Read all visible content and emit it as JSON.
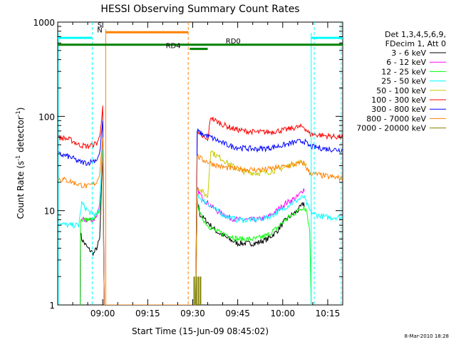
{
  "chart_data": {
    "type": "line",
    "title": "HESSI Observing Summary Count Rates",
    "xlabel": "Start Time (15-Jun-09 08:45:02)",
    "ylabel_main": "Count Rate (s",
    "ylabel_sup1": "-1",
    "ylabel_mid": " detector",
    "ylabel_sup2": "-1",
    "ylabel_end": ")",
    "y_scale": "log",
    "ylim": [
      1,
      1000
    ],
    "xlim_minutes_after_0845": [
      0,
      95
    ],
    "x_ticks": [
      {
        "m": 15,
        "label": "09:00"
      },
      {
        "m": 30,
        "label": "09:15"
      },
      {
        "m": 45,
        "label": "09:30"
      },
      {
        "m": 60,
        "label": "09:45"
      },
      {
        "m": 75,
        "label": "10:00"
      },
      {
        "m": 90,
        "label": "10:15"
      }
    ],
    "y_ticks": [
      {
        "v": 1,
        "label": "1"
      },
      {
        "v": 10,
        "label": "10"
      },
      {
        "v": 100,
        "label": "100"
      },
      {
        "v": 1000,
        "label": "1000"
      }
    ],
    "legend_placement": "top-right",
    "legend_header": [
      "Det 1,3,4,5,6,9,",
      "FDecim 1, Att 0"
    ],
    "timestamp": "8-Mar-2010 18:28",
    "series": [
      {
        "name": "3 - 6 keV",
        "color": "#000000",
        "points": [
          [
            0,
            1
          ],
          [
            7.5,
            1
          ],
          [
            7.6,
            6
          ],
          [
            8,
            5
          ],
          [
            10,
            4
          ],
          [
            12,
            3.5
          ],
          [
            13,
            4
          ],
          [
            14,
            5
          ],
          [
            15,
            40
          ],
          [
            15.5,
            1
          ],
          [
            46,
            1
          ],
          [
            46.5,
            13
          ],
          [
            47.5,
            9
          ],
          [
            50,
            7.5
          ],
          [
            53,
            6
          ],
          [
            57,
            5
          ],
          [
            60,
            4.5
          ],
          [
            66,
            4.5
          ],
          [
            70,
            5
          ],
          [
            73,
            6
          ],
          [
            76,
            8
          ],
          [
            80,
            10
          ],
          [
            82,
            12
          ],
          [
            82.2,
            11
          ]
        ]
      },
      {
        "name": "6 - 12 keV",
        "color": "#ff00ff",
        "points": [
          [
            7.5,
            1
          ],
          [
            7.6,
            8
          ],
          [
            12,
            8
          ],
          [
            13,
            9
          ],
          [
            14,
            12
          ],
          [
            15,
            40
          ],
          [
            15.5,
            1
          ],
          [
            46,
            1
          ],
          [
            46.5,
            17
          ],
          [
            48,
            14
          ],
          [
            50,
            12
          ],
          [
            53,
            10
          ],
          [
            57,
            8.5
          ],
          [
            60,
            8
          ],
          [
            66,
            8
          ],
          [
            70,
            8.5
          ],
          [
            73,
            10
          ],
          [
            76,
            12
          ],
          [
            80,
            14
          ],
          [
            82,
            17
          ],
          [
            82.2,
            16
          ]
        ]
      },
      {
        "name": "12 - 25 keV",
        "color": "#00ff00",
        "points": [
          [
            7.5,
            1
          ],
          [
            7.6,
            8
          ],
          [
            12,
            8
          ],
          [
            13,
            9
          ],
          [
            14,
            10
          ],
          [
            15,
            50
          ],
          [
            15.5,
            1
          ],
          [
            46,
            1
          ],
          [
            46.5,
            13
          ],
          [
            47.5,
            9
          ],
          [
            50,
            7
          ],
          [
            53,
            6
          ],
          [
            57,
            5.5
          ],
          [
            60,
            5
          ],
          [
            66,
            5
          ],
          [
            70,
            5.5
          ],
          [
            73,
            6.5
          ],
          [
            76,
            8
          ],
          [
            80,
            10
          ],
          [
            82,
            11
          ],
          [
            83,
            10
          ],
          [
            84,
            6
          ],
          [
            84.5,
            1
          ]
        ]
      },
      {
        "name": "25 - 50 keV",
        "color": "#00ffff",
        "points": [
          [
            0,
            7.5
          ],
          [
            3,
            7
          ],
          [
            7,
            7
          ],
          [
            8,
            12
          ],
          [
            10,
            10
          ],
          [
            12,
            9
          ],
          [
            14,
            10
          ],
          [
            15,
            60
          ],
          [
            15.5,
            1
          ],
          [
            46,
            1
          ],
          [
            46.5,
            15
          ],
          [
            48,
            13
          ],
          [
            50,
            12
          ],
          [
            53,
            10
          ],
          [
            57,
            8.5
          ],
          [
            60,
            8
          ],
          [
            66,
            8
          ],
          [
            70,
            8.5
          ],
          [
            73,
            9.5
          ],
          [
            76,
            11
          ],
          [
            80,
            13
          ],
          [
            82,
            14
          ],
          [
            84,
            10
          ],
          [
            86,
            9
          ],
          [
            90,
            8.5
          ],
          [
            95,
            8.5
          ]
        ]
      },
      {
        "name": "50 - 100 keV",
        "color": "#c8c800",
        "points": [
          [
            46,
            1
          ],
          [
            46.5,
            18
          ],
          [
            48,
            16
          ],
          [
            49,
            15
          ],
          [
            50,
            14
          ],
          [
            51,
            45
          ],
          [
            52,
            40
          ],
          [
            55,
            35
          ],
          [
            58,
            30
          ],
          [
            62,
            26
          ],
          [
            66,
            25
          ],
          [
            70,
            25.5
          ],
          [
            73,
            27
          ],
          [
            76,
            29
          ],
          [
            79,
            32
          ],
          [
            82,
            33
          ],
          [
            83,
            30
          ]
        ]
      },
      {
        "name": "100 - 300 keV",
        "color": "#ff0000",
        "points": [
          [
            0,
            60
          ],
          [
            3,
            58
          ],
          [
            5,
            55
          ],
          [
            7,
            50
          ],
          [
            10,
            48
          ],
          [
            13,
            52
          ],
          [
            14,
            60
          ],
          [
            15,
            130
          ],
          [
            15.5,
            1
          ],
          [
            46,
            1
          ],
          [
            46.5,
            65
          ],
          [
            48,
            62
          ],
          [
            50,
            55
          ],
          [
            51,
            100
          ],
          [
            52,
            92
          ],
          [
            55,
            82
          ],
          [
            58,
            75
          ],
          [
            62,
            70
          ],
          [
            66,
            68
          ],
          [
            70,
            68
          ],
          [
            73,
            70
          ],
          [
            76,
            72
          ],
          [
            79,
            76
          ],
          [
            82,
            78
          ],
          [
            84,
            65
          ],
          [
            90,
            62
          ],
          [
            95,
            60
          ]
        ]
      },
      {
        "name": "300 - 800 keV",
        "color": "#0000ff",
        "points": [
          [
            0,
            40
          ],
          [
            3,
            38
          ],
          [
            5,
            36
          ],
          [
            7,
            33
          ],
          [
            10,
            32
          ],
          [
            13,
            35
          ],
          [
            14,
            40
          ],
          [
            15,
            90
          ],
          [
            15.5,
            1
          ],
          [
            46,
            1
          ],
          [
            46.5,
            70
          ],
          [
            48,
            65
          ],
          [
            50,
            62
          ],
          [
            52,
            58
          ],
          [
            55,
            52
          ],
          [
            58,
            48
          ],
          [
            62,
            46
          ],
          [
            66,
            45
          ],
          [
            70,
            46
          ],
          [
            73,
            48
          ],
          [
            76,
            50
          ],
          [
            79,
            53
          ],
          [
            82,
            55
          ],
          [
            84,
            48
          ],
          [
            90,
            45
          ],
          [
            95,
            44
          ]
        ]
      },
      {
        "name": "800 - 7000 keV",
        "color": "#ff8000",
        "points": [
          [
            0,
            22
          ],
          [
            3,
            21
          ],
          [
            5,
            20
          ],
          [
            7,
            19
          ],
          [
            10,
            18
          ],
          [
            13,
            20
          ],
          [
            14,
            25
          ],
          [
            15,
            60
          ],
          [
            15.5,
            1
          ],
          [
            46,
            1
          ],
          [
            46.5,
            38
          ],
          [
            48,
            35
          ],
          [
            50,
            33
          ],
          [
            52,
            31
          ],
          [
            55,
            29
          ],
          [
            58,
            28
          ],
          [
            62,
            27.5
          ],
          [
            66,
            27
          ],
          [
            70,
            27.5
          ],
          [
            73,
            28.5
          ],
          [
            76,
            29.5
          ],
          [
            79,
            31
          ],
          [
            82,
            32
          ],
          [
            84,
            25
          ],
          [
            90,
            23
          ],
          [
            95,
            22
          ]
        ]
      },
      {
        "name": "7000 - 20000 keV",
        "color": "#808000",
        "points": []
      }
    ],
    "markers": [
      {
        "type": "vline",
        "m": 11.5,
        "color": "#00ffff",
        "dash": true
      },
      {
        "type": "vline",
        "m": 85.5,
        "color": "#00ffff",
        "dash": true
      },
      {
        "type": "vline",
        "m": 94.5,
        "color": "#00ffff",
        "dash": true
      },
      {
        "type": "vline",
        "m": 43.5,
        "color": "#ff8000",
        "dash": true
      }
    ],
    "flags": [
      {
        "label": "RD0",
        "color": "#008000"
      },
      {
        "label": "RD4",
        "color": "#008000"
      },
      {
        "label": "S",
        "color": "#ff8000"
      },
      {
        "label": "N",
        "color": "#00ffff"
      }
    ]
  }
}
